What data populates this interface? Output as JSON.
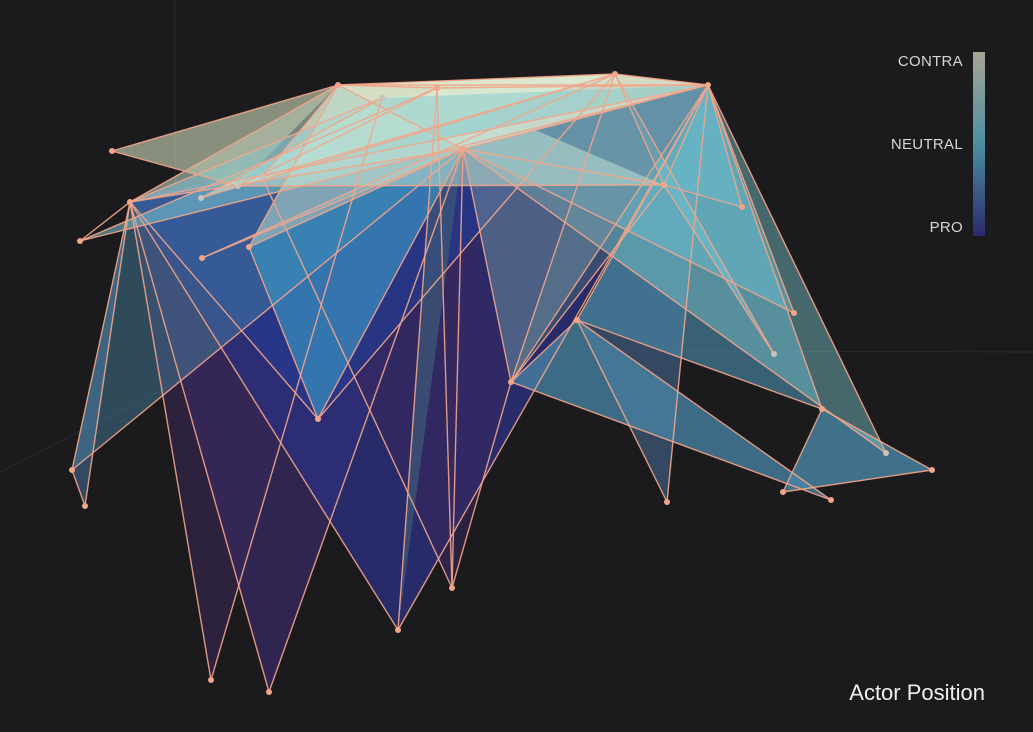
{
  "chart_data": {
    "type": "3d-network",
    "title": "Actor Position",
    "legend": {
      "labels": [
        "CONTRA",
        "NEUTRAL",
        "PRO"
      ],
      "colors": [
        "#a7a594",
        "#4b8fa2",
        "#2c2a6c"
      ]
    },
    "colors": {
      "edge": "#f3a58a",
      "node": "#f3a58a",
      "background": "#1b1a1c"
    }
  }
}
